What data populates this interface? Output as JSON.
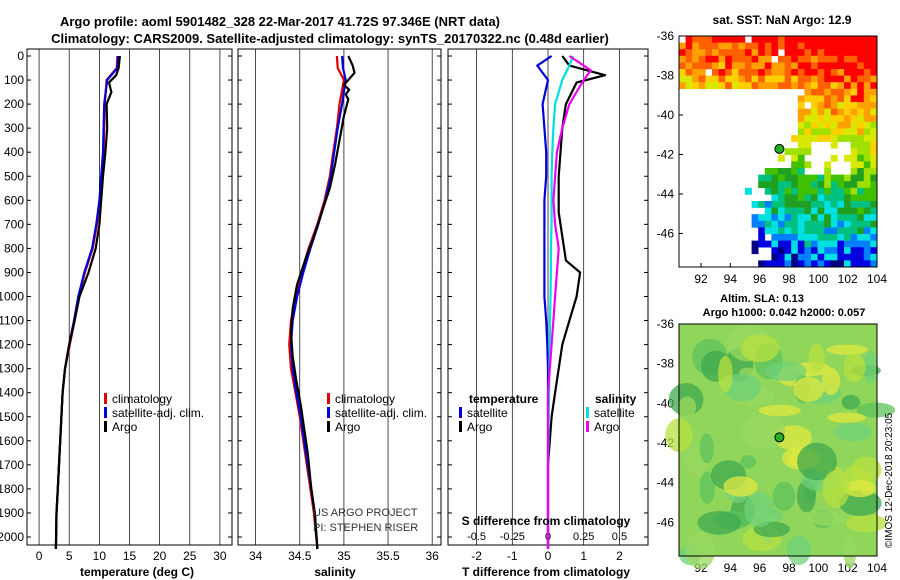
{
  "header": {
    "line1": "Argo profile: aoml 5901482_328 22-Mar-2017 41.72S 97.346E (NRT data)",
    "line2": "Climatology: CARS2009. Satellite-adjusted climatology: synTS_20170322.nc (0.48d earlier)"
  },
  "colors": {
    "climatology": "#e00000",
    "satellite": "#0000dd",
    "argo": "#000000",
    "sat_salinity": "#00e0e0",
    "argo_salinity": "#ee00ee"
  },
  "chart_data": [
    {
      "type": "line",
      "id": "temperature",
      "xlabel": "temperature (deg C)",
      "ylabel": "",
      "xlim": [
        -2,
        32
      ],
      "ylim": [
        2100,
        0
      ],
      "xticks": [
        0,
        5,
        10,
        15,
        20,
        25,
        30
      ],
      "yticks": [
        0,
        100,
        200,
        300,
        400,
        500,
        600,
        700,
        800,
        900,
        1000,
        1100,
        1200,
        1300,
        1400,
        1500,
        1600,
        1700,
        1800,
        1900,
        2000
      ],
      "legend": [
        "climatology",
        "satellite-adj. clim.",
        "Argo"
      ],
      "legend_position": "bottom-right",
      "series": [
        {
          "name": "climatology",
          "color": "#e00000",
          "x": [
            13.0,
            12.9,
            11.2,
            10.9,
            10.8,
            10.7,
            10.4,
            10.1,
            9.6,
            8.9,
            7.6,
            6.6,
            5.9,
            5.1,
            4.3,
            3.9,
            3.7,
            3.5,
            3.3,
            3.1,
            2.9,
            2.8
          ],
          "y": [
            0,
            50,
            100,
            200,
            300,
            400,
            500,
            600,
            700,
            800,
            900,
            1000,
            1100,
            1200,
            1300,
            1400,
            1500,
            1600,
            1700,
            1800,
            1900,
            2050
          ]
        },
        {
          "name": "satellite-adj. clim.",
          "color": "#0000dd",
          "x": [
            13.1,
            13.0,
            11.3,
            10.8,
            10.7,
            10.6,
            10.3,
            10.0,
            9.5,
            8.8,
            7.5,
            6.5,
            5.8,
            5.0,
            4.3,
            3.9,
            3.7,
            3.5,
            3.3,
            3.1,
            2.9,
            2.8
          ],
          "y": [
            0,
            50,
            100,
            200,
            300,
            400,
            500,
            600,
            700,
            800,
            900,
            1000,
            1100,
            1200,
            1300,
            1400,
            1500,
            1600,
            1700,
            1800,
            1900,
            2050
          ]
        },
        {
          "name": "Argo",
          "color": "#000000",
          "x": [
            13.4,
            13.2,
            12.8,
            11.6,
            12.0,
            11.2,
            11.3,
            11.0,
            10.6,
            10.3,
            10.0,
            9.4,
            8.2,
            6.7,
            5.9,
            5.0,
            4.3,
            3.9,
            3.7,
            3.5,
            3.3,
            3.1,
            2.9,
            2.8
          ],
          "y": [
            0,
            50,
            80,
            110,
            150,
            200,
            300,
            400,
            500,
            600,
            700,
            800,
            900,
            1000,
            1100,
            1200,
            1300,
            1400,
            1500,
            1600,
            1700,
            1800,
            1900,
            2050
          ]
        }
      ]
    },
    {
      "type": "line",
      "id": "salinity",
      "xlabel": "salinity",
      "xlim": [
        33.8,
        36.1
      ],
      "ylim": [
        2100,
        0
      ],
      "xticks": [
        34,
        34.5,
        35,
        35.5,
        36
      ],
      "xticklabels": [
        "34",
        "34.5",
        "35",
        "35.5",
        "36"
      ],
      "legend": [
        "climatology",
        "satellite-adj. clim.",
        "Argo"
      ],
      "legend_position": "bottom-right",
      "annotation": [
        "US ARGO PROJECT",
        "PI: STEPHEN RISER"
      ],
      "series": [
        {
          "name": "climatology",
          "color": "#e00000",
          "x": [
            34.92,
            34.93,
            35.0,
            34.95,
            34.92,
            34.88,
            34.84,
            34.78,
            34.7,
            34.6,
            34.52,
            34.45,
            34.4,
            34.38,
            34.4,
            34.45,
            34.5,
            34.54,
            34.58,
            34.62,
            34.66,
            34.7
          ],
          "y": [
            0,
            50,
            100,
            200,
            300,
            400,
            500,
            600,
            700,
            800,
            900,
            1000,
            1100,
            1200,
            1300,
            1400,
            1500,
            1600,
            1700,
            1800,
            1900,
            2050
          ]
        },
        {
          "name": "satellite-adj. clim.",
          "color": "#0000dd",
          "x": [
            34.98,
            34.99,
            35.02,
            34.98,
            34.93,
            34.89,
            34.85,
            34.79,
            34.71,
            34.62,
            34.54,
            34.47,
            34.42,
            34.4,
            34.42,
            34.46,
            34.51,
            34.55,
            34.59,
            34.63,
            34.67,
            34.7
          ],
          "y": [
            0,
            50,
            100,
            200,
            300,
            400,
            500,
            600,
            700,
            800,
            900,
            1000,
            1100,
            1200,
            1300,
            1400,
            1500,
            1600,
            1700,
            1800,
            1900,
            2050
          ]
        },
        {
          "name": "Argo",
          "color": "#000000",
          "x": [
            35.05,
            35.1,
            35.12,
            35.05,
            35.0,
            35.06,
            35.02,
            35.05,
            35.0,
            34.95,
            34.9,
            34.84,
            34.75,
            34.66,
            34.56,
            34.47,
            34.42,
            34.4,
            34.42,
            34.46,
            34.51,
            34.55,
            34.59,
            34.63,
            34.67,
            34.7
          ],
          "y": [
            0,
            40,
            70,
            100,
            120,
            140,
            160,
            180,
            250,
            350,
            450,
            550,
            650,
            750,
            850,
            950,
            1050,
            1150,
            1250,
            1350,
            1450,
            1550,
            1650,
            1800,
            1900,
            2050
          ]
        }
      ]
    },
    {
      "type": "line",
      "id": "difference",
      "xlabel": "T difference from climatology",
      "xlabel_top": "S difference from climatology",
      "xlim": [
        -2.8,
        2.8
      ],
      "ylim": [
        2100,
        0
      ],
      "xticks": [
        -2,
        -1,
        0,
        1,
        2
      ],
      "xticklabels": [
        "-2",
        "-1",
        "0",
        "1",
        "2"
      ],
      "xticks_top": [
        -0.5,
        -0.25,
        0,
        0.25,
        0.5
      ],
      "xticklabels_top": [
        "-0.5",
        "-0.25",
        "0",
        "0.25",
        "0.5"
      ],
      "legend_left_title": "temperature",
      "legend_right_title": "salinity",
      "legend_left": [
        "satellite",
        "Argo"
      ],
      "legend_right": [
        "satellite",
        "Argo"
      ],
      "series": [
        {
          "name": "T satellite",
          "color": "#0000dd",
          "x": [
            0.1,
            -0.3,
            0.0,
            -0.15,
            -0.1,
            -0.05,
            -0.05,
            -0.1,
            -0.1,
            -0.1,
            -0.1,
            -0.1,
            -0.05,
            -0.02,
            0.0,
            0.0,
            0.0,
            0.0,
            0.0,
            0.0,
            0.0,
            0.0
          ],
          "y": [
            0,
            40,
            100,
            200,
            300,
            400,
            500,
            600,
            700,
            800,
            900,
            1000,
            1100,
            1200,
            1300,
            1400,
            1500,
            1600,
            1700,
            1800,
            1900,
            2050
          ]
        },
        {
          "name": "T Argo",
          "color": "#000000",
          "x": [
            0.4,
            0.6,
            1.6,
            0.8,
            0.5,
            0.4,
            0.3,
            0.3,
            0.4,
            0.5,
            0.9,
            0.8,
            0.6,
            0.4,
            0.3,
            0.2,
            0.1,
            0.05,
            0.0,
            0.0,
            0.0,
            0.0
          ],
          "y": [
            0,
            40,
            80,
            110,
            200,
            300,
            500,
            650,
            750,
            850,
            900,
            1000,
            1100,
            1200,
            1300,
            1400,
            1500,
            1600,
            1700,
            1800,
            1900,
            2050
          ]
        },
        {
          "name": "S satellite",
          "color": "#00e0e0",
          "x": [
            0.7,
            0.6,
            0.4,
            0.2,
            0.15,
            0.12,
            0.1,
            0.1,
            0.1,
            0.08,
            0.08,
            0.07,
            0.06,
            0.05,
            0.04,
            0.03,
            0.02,
            0.01,
            0.0,
            0.0,
            0.0,
            0.0
          ],
          "y": [
            0,
            40,
            100,
            200,
            300,
            400,
            500,
            600,
            700,
            800,
            900,
            1000,
            1100,
            1200,
            1300,
            1400,
            1500,
            1600,
            1700,
            1800,
            1900,
            2050
          ]
        },
        {
          "name": "S Argo",
          "color": "#ee00ee",
          "x": [
            0.6,
            1.2,
            1.0,
            0.6,
            0.4,
            0.25,
            0.2,
            0.15,
            0.2,
            0.3,
            0.25,
            0.2,
            0.15,
            0.1,
            0.05,
            0.0,
            0.0,
            0.0,
            0.0,
            0.0,
            0.0,
            0.0
          ],
          "y": [
            0,
            60,
            100,
            200,
            300,
            400,
            500,
            600,
            700,
            800,
            900,
            1000,
            1100,
            1200,
            1300,
            1400,
            1500,
            1600,
            1700,
            1800,
            1900,
            2050
          ]
        }
      ]
    },
    {
      "type": "heatmap",
      "id": "sst_map",
      "title": "sat. SST: NaN Argo: 12.9",
      "xlim": [
        90.5,
        104
      ],
      "ylim": [
        -47.7,
        -36
      ],
      "xticks": [
        92,
        94,
        96,
        98,
        100,
        102,
        104
      ],
      "yticks": [
        -36,
        -38,
        -40,
        -42,
        -44,
        -46
      ],
      "profile_location": {
        "lon": 97.346,
        "lat": -41.72
      }
    },
    {
      "type": "heatmap",
      "id": "sla_map",
      "title_line1": "Altim. SLA: 0.13",
      "title_line2": "Argo h1000: 0.042 h2000: 0.057",
      "xlim": [
        90.5,
        104
      ],
      "ylim": [
        -47.7,
        -36
      ],
      "xticks": [
        92,
        94,
        96,
        98,
        100,
        102,
        104
      ],
      "yticks": [
        -36,
        -38,
        -40,
        -42,
        -44,
        -46
      ],
      "credit": "©IMOS 12-Dec-2018 20:23:05",
      "profile_location": {
        "lon": 97.346,
        "lat": -41.72
      }
    }
  ]
}
